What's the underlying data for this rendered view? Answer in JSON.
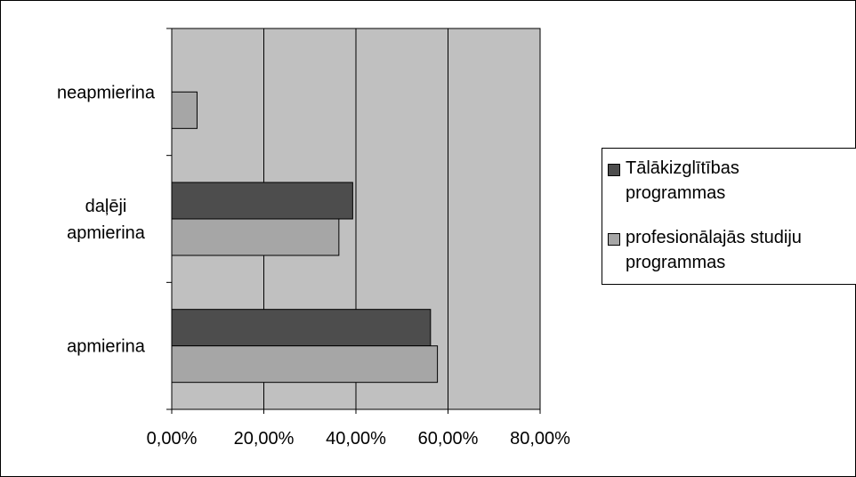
{
  "chart_data": {
    "type": "bar",
    "orientation": "horizontal",
    "categories": [
      "neapmierina",
      "daļēji apmierina",
      "apmierina"
    ],
    "category_label_lines": [
      [
        "neapmierina"
      ],
      [
        "daļēji",
        "apmierina"
      ],
      [
        "apmierina"
      ]
    ],
    "series": [
      {
        "name": "Tālākizglītības programmas",
        "values": [
          null,
          0.393,
          0.562
        ],
        "color": "#4d4d4d"
      },
      {
        "name": "profesionālajās studiju programmas",
        "values": [
          0.055,
          0.363,
          0.577
        ],
        "color": "#a6a6a6"
      }
    ],
    "legend_lines": [
      [
        "Tālākizglītības",
        "programmas"
      ],
      [
        "profesionālajās studiju",
        "programmas"
      ]
    ],
    "xlim": [
      0,
      0.8
    ],
    "x_ticks": [
      0,
      0.2,
      0.4,
      0.6,
      0.8
    ],
    "x_tick_labels": [
      "0,00%",
      "20,00%",
      "40,00%",
      "60,00%",
      "80,00%"
    ],
    "plot_background": "#c0c0c0",
    "grid": true,
    "legend_position": "right",
    "title": "",
    "xlabel": "",
    "ylabel": ""
  }
}
